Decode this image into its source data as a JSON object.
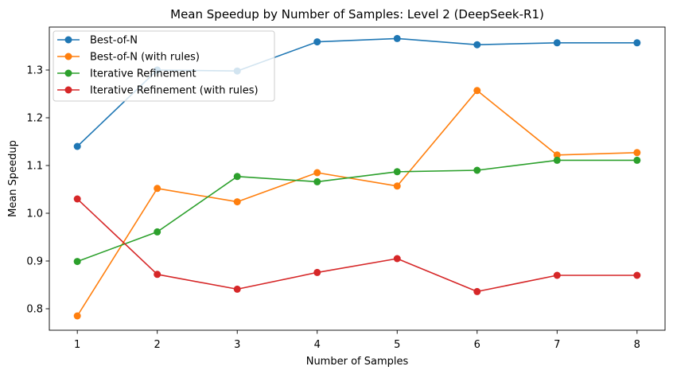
{
  "chart_data": {
    "type": "line",
    "title": "Mean Speedup by Number of Samples: Level 2 (DeepSeek-R1)",
    "xlabel": "Number of Samples",
    "ylabel": "Mean Speedup",
    "x": [
      1,
      2,
      3,
      4,
      5,
      6,
      7,
      8
    ],
    "xlim": [
      0.65,
      8.35
    ],
    "ylim": [
      0.755,
      1.39
    ],
    "yticks": [
      0.8,
      0.9,
      1.0,
      1.1,
      1.2,
      1.3
    ],
    "ytick_labels": [
      "0.8",
      "0.9",
      "1.0",
      "1.1",
      "1.2",
      "1.3"
    ],
    "xtick_labels": [
      "1",
      "2",
      "3",
      "4",
      "5",
      "6",
      "7",
      "8"
    ],
    "grid": false,
    "legend_position": "top-left",
    "series": [
      {
        "name": "Best-of-N",
        "color": "#1f77b4",
        "values": [
          1.14,
          1.3,
          1.298,
          1.359,
          1.366,
          1.353,
          1.357,
          1.357
        ]
      },
      {
        "name": "Best-of-N (with rules)",
        "color": "#ff7f0e",
        "values": [
          0.785,
          1.052,
          1.024,
          1.085,
          1.057,
          1.257,
          1.122,
          1.127
        ]
      },
      {
        "name": "Iterative Refinement",
        "color": "#2ca02c",
        "values": [
          0.899,
          0.961,
          1.077,
          1.066,
          1.087,
          1.09,
          1.111,
          1.111
        ]
      },
      {
        "name": "Iterative Refinement (with rules)",
        "color": "#d62728",
        "values": [
          1.03,
          0.872,
          0.841,
          0.876,
          0.905,
          0.836,
          0.87,
          0.87
        ]
      }
    ]
  }
}
